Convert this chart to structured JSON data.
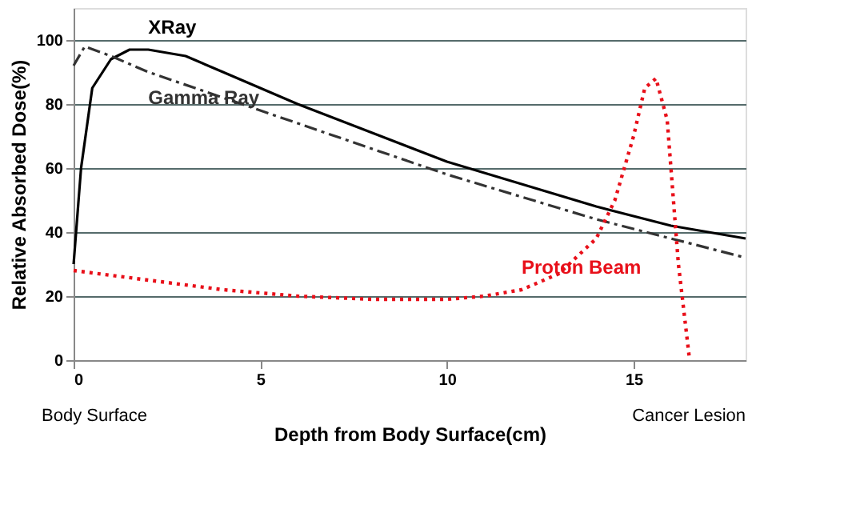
{
  "chart_data": {
    "type": "line",
    "xlabel": "Depth from Body Surface(cm)",
    "ylabel": "Relative Absorbed Dose(%)",
    "xlim": [
      0,
      18
    ],
    "xticks": [
      0,
      5,
      10,
      15
    ],
    "ylim": [
      0,
      110
    ],
    "yticks": [
      0,
      20,
      40,
      60,
      80,
      100
    ],
    "grid": "y",
    "series": [
      {
        "name": "XRay",
        "color": "#000000",
        "line_style": "solid",
        "x": [
          0,
          0.2,
          0.5,
          1,
          1.5,
          2,
          3,
          4,
          6,
          8,
          10,
          12,
          14,
          16,
          18
        ],
        "values": [
          30,
          60,
          85,
          94,
          97,
          97,
          95,
          90,
          80,
          71,
          62,
          55,
          48,
          42,
          38
        ]
      },
      {
        "name": "Gamma Ray",
        "color": "#333333",
        "line_style": "dashed",
        "x": [
          0,
          0.3,
          1,
          2,
          4,
          6,
          8,
          10,
          12,
          14,
          16,
          18
        ],
        "values": [
          92,
          98,
          95,
          90,
          82,
          74,
          66,
          58,
          51,
          44,
          38,
          32
        ]
      },
      {
        "name": "Proton Beam",
        "color": "#e8101a",
        "line_style": "dotted",
        "x": [
          0,
          2,
          4,
          6,
          8,
          10,
          11,
          12,
          13,
          14,
          14.5,
          15,
          15.3,
          15.6,
          15.9,
          16.2,
          16.5
        ],
        "values": [
          28,
          25,
          22,
          20,
          19,
          19,
          20,
          22,
          27,
          38,
          50,
          70,
          85,
          88,
          75,
          30,
          0
        ]
      }
    ],
    "annotations": [
      "Body Surface",
      "Cancer Lesion"
    ]
  }
}
